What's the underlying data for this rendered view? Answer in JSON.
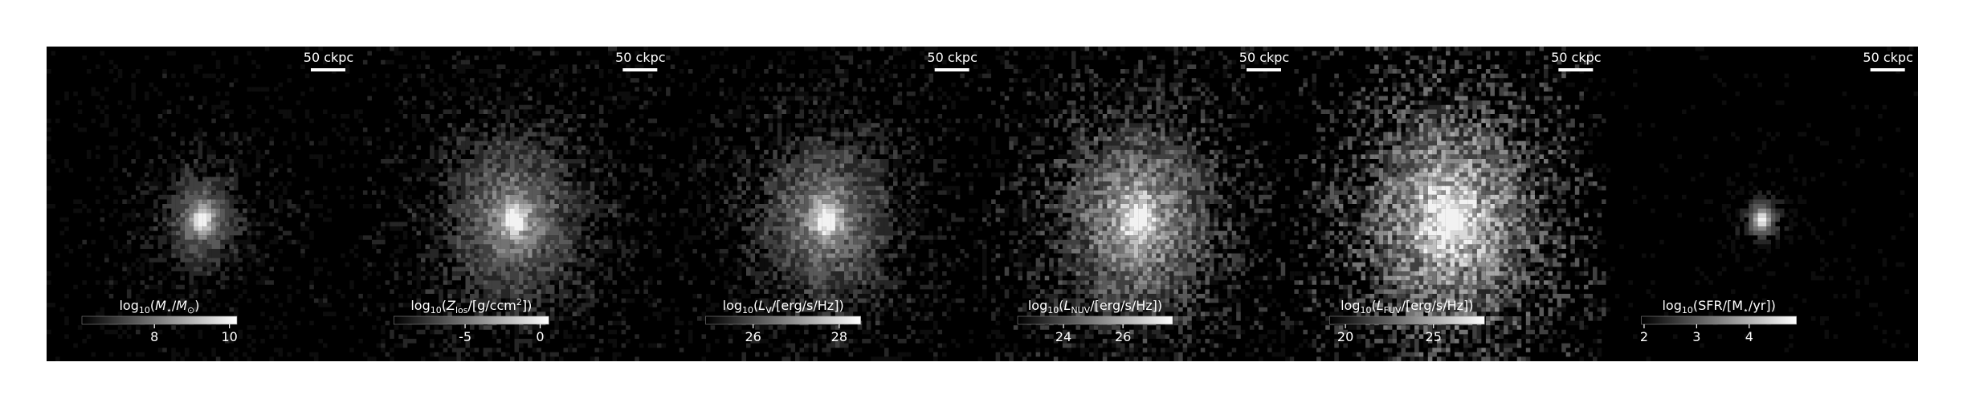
{
  "panels": [
    {
      "scale_label": "50 ckpc",
      "colorbar": {
        "label": [
          {
            "text": "log"
          },
          {
            "text": "10",
            "style": "sub"
          },
          {
            "text": "("
          },
          {
            "text": "M",
            "style": "italic"
          },
          {
            "text": "⋆",
            "style": "sub"
          },
          {
            "text": "/"
          },
          {
            "text": "M",
            "style": "italic"
          },
          {
            "text": "⊙",
            "style": "sub"
          },
          {
            "text": ")"
          }
        ],
        "lim": [
          6.07,
          10.2
        ],
        "ticks": [
          8,
          10
        ]
      }
    },
    {
      "scale_label": "50 ckpc",
      "colorbar": {
        "label": [
          {
            "text": "log"
          },
          {
            "text": "10",
            "style": "sub"
          },
          {
            "text": "("
          },
          {
            "text": "Z",
            "style": "italic"
          },
          {
            "text": "los",
            "style": "sub"
          },
          {
            "text": "/[g/ccm"
          },
          {
            "text": "2",
            "style": "sup"
          },
          {
            "text": "])"
          }
        ],
        "lim": [
          -9.75,
          0.58
        ],
        "ticks": [
          -5,
          0
        ]
      }
    },
    {
      "scale_label": "50 ckpc",
      "colorbar": {
        "label": [
          {
            "text": "log"
          },
          {
            "text": "10",
            "style": "sub"
          },
          {
            "text": "("
          },
          {
            "text": "L",
            "style": "italic"
          },
          {
            "text": "V",
            "style": "sub"
          },
          {
            "text": "/[erg/s/Hz])"
          }
        ],
        "lim": [
          24.9,
          28.5
        ],
        "ticks": [
          26,
          28
        ]
      }
    },
    {
      "scale_label": "50 ckpc",
      "colorbar": {
        "label": [
          {
            "text": "log"
          },
          {
            "text": "10",
            "style": "sub"
          },
          {
            "text": "("
          },
          {
            "text": "L",
            "style": "italic"
          },
          {
            "text": "NUV",
            "style": "sub"
          },
          {
            "text": "/[erg/s/Hz])"
          }
        ],
        "lim": [
          22.46,
          27.67
        ],
        "ticks": [
          24,
          26
        ]
      }
    },
    {
      "scale_label": "50 ckpc",
      "colorbar": {
        "label": [
          {
            "text": "log"
          },
          {
            "text": "10",
            "style": "sub"
          },
          {
            "text": "("
          },
          {
            "text": "L",
            "style": "italic"
          },
          {
            "text": "FUV",
            "style": "sub"
          },
          {
            "text": "/[erg/s/Hz])"
          }
        ],
        "lim": [
          19.1,
          27.9
        ],
        "ticks": [
          20,
          25
        ]
      }
    },
    {
      "scale_label": "50 ckpc",
      "colorbar": {
        "label": [
          {
            "text": "log"
          },
          {
            "text": "10",
            "style": "sub"
          },
          {
            "text": "(SFR/[M"
          },
          {
            "text": "⋆",
            "style": "sub"
          },
          {
            "text": "/yr])"
          }
        ],
        "lim": [
          1.95,
          4.9
        ],
        "ticks": [
          2,
          3,
          4
        ]
      }
    }
  ]
}
